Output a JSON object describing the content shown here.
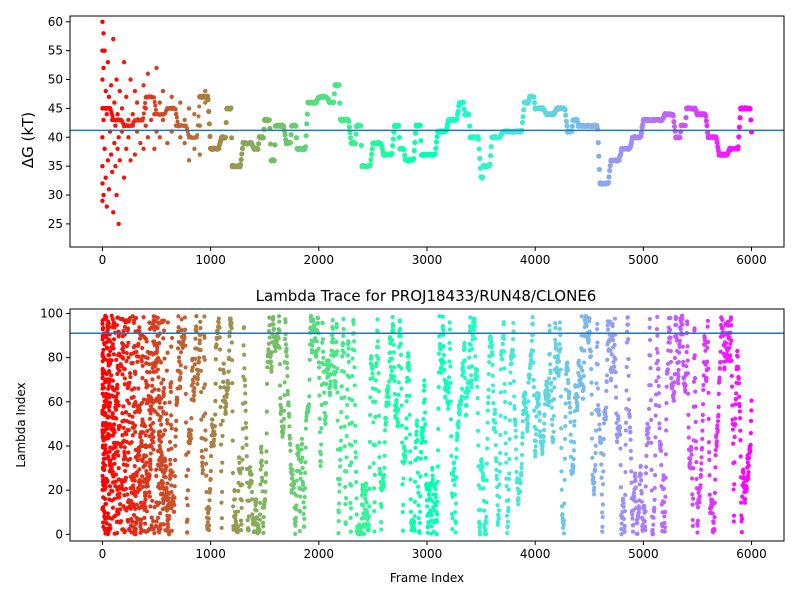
{
  "chart_data": [
    {
      "type": "scatter",
      "title": "",
      "xlabel": "",
      "ylabel": "ΔG (kT)",
      "xlim": [
        -300,
        6300
      ],
      "ylim": [
        21,
        61
      ],
      "xticks": [
        0,
        1000,
        2000,
        3000,
        4000,
        5000,
        6000
      ],
      "yticks": [
        25,
        30,
        35,
        40,
        45,
        50,
        55,
        60
      ],
      "hline": 41.2,
      "hline_color": "#1f77b4",
      "colormap": "rainbow (red at frame 0 → violet at frame 6000)",
      "grid": false,
      "legend": "none",
      "series_trace": {
        "x": [
          0,
          100,
          200,
          300,
          400,
          500,
          600,
          700,
          800,
          900,
          1000,
          1100,
          1150,
          1200,
          1300,
          1400,
          1450,
          1500,
          1560,
          1600,
          1700,
          1750,
          1800,
          1900,
          2000,
          2100,
          2150,
          2200,
          2300,
          2350,
          2400,
          2500,
          2600,
          2700,
          2750,
          2800,
          2900,
          2950,
          3000,
          3100,
          3200,
          3300,
          3350,
          3400,
          3500,
          3520,
          3600,
          3700,
          3800,
          3900,
          3950,
          4000,
          4100,
          4200,
          4300,
          4350,
          4400,
          4500,
          4600,
          4700,
          4800,
          4900,
          5000,
          5100,
          5200,
          5300,
          5350,
          5400,
          5500,
          5600,
          5700,
          5800,
          5900,
          5950,
          6000
        ],
        "y": [
          45,
          43,
          42,
          43,
          47,
          44,
          45,
          42,
          40,
          47,
          38,
          40,
          45,
          35,
          39,
          38,
          40,
          43,
          36,
          42,
          39,
          42,
          38,
          46,
          47,
          46,
          49,
          43,
          39,
          42,
          35,
          39,
          37,
          42,
          38,
          36,
          42,
          37,
          37,
          41,
          43,
          46,
          44,
          40,
          33,
          35,
          40,
          41,
          41,
          46,
          47,
          45,
          44,
          45,
          41,
          43,
          42,
          42,
          32,
          36,
          38,
          40,
          43,
          43,
          44,
          40,
          42,
          45,
          44,
          40,
          37,
          38,
          45,
          45,
          41
        ]
      },
      "series_scatter": {
        "x": [
          0,
          0,
          0,
          0,
          0,
          0,
          0,
          0,
          10,
          10,
          10,
          10,
          20,
          20,
          30,
          30,
          40,
          40,
          50,
          50,
          60,
          60,
          70,
          70,
          80,
          80,
          90,
          90,
          100,
          100,
          110,
          110,
          120,
          120,
          130,
          130,
          140,
          140,
          150,
          150,
          160,
          160,
          180,
          180,
          200,
          200,
          220,
          220,
          240,
          240,
          260,
          260,
          280,
          280,
          300,
          300,
          320,
          320,
          350,
          350,
          380,
          380,
          400,
          400,
          420,
          420,
          450,
          450,
          480,
          480,
          500,
          500,
          530,
          530,
          560,
          560,
          600,
          600,
          640,
          640,
          680,
          680,
          720,
          720,
          760,
          760,
          800,
          800,
          850,
          850,
          900,
          900,
          950,
          950
        ],
        "y": [
          60,
          55,
          50,
          45,
          40,
          35,
          32,
          29,
          58,
          52,
          43,
          30,
          55,
          38,
          48,
          33,
          44,
          28,
          53,
          36,
          47,
          31,
          41,
          45,
          49,
          37,
          43,
          34,
          57,
          27,
          46,
          39,
          42,
          35,
          50,
          30,
          44,
          38,
          40,
          25,
          48,
          36,
          45,
          41,
          53,
          33,
          47,
          38,
          43,
          40,
          50,
          36,
          44,
          42,
          48,
          37,
          46,
          41,
          43,
          39,
          49,
          38,
          45,
          42,
          51,
          40,
          47,
          43,
          44,
          38,
          52,
          41,
          46,
          40,
          48,
          43,
          45,
          39,
          47,
          41,
          44,
          42,
          46,
          40,
          43,
          39,
          45,
          36,
          44,
          38,
          42,
          37,
          46,
          48
        ]
      }
    },
    {
      "type": "scatter",
      "title": "Lambda Trace for PROJ18433/RUN48/CLONE6",
      "xlabel": "Frame Index",
      "ylabel": "Lambda Index",
      "xlim": [
        -300,
        6300
      ],
      "ylim": [
        -3,
        102
      ],
      "xticks": [
        0,
        1000,
        2000,
        3000,
        4000,
        5000,
        6000
      ],
      "yticks": [
        0,
        20,
        40,
        60,
        80,
        100
      ],
      "hline": 91,
      "hline_color": "#1f77b4",
      "colormap": "rainbow (red at frame 0 → violet at frame 6000)",
      "grid": false,
      "legend": "none",
      "frames": 6000,
      "lambda_range": [
        0,
        99
      ]
    }
  ]
}
